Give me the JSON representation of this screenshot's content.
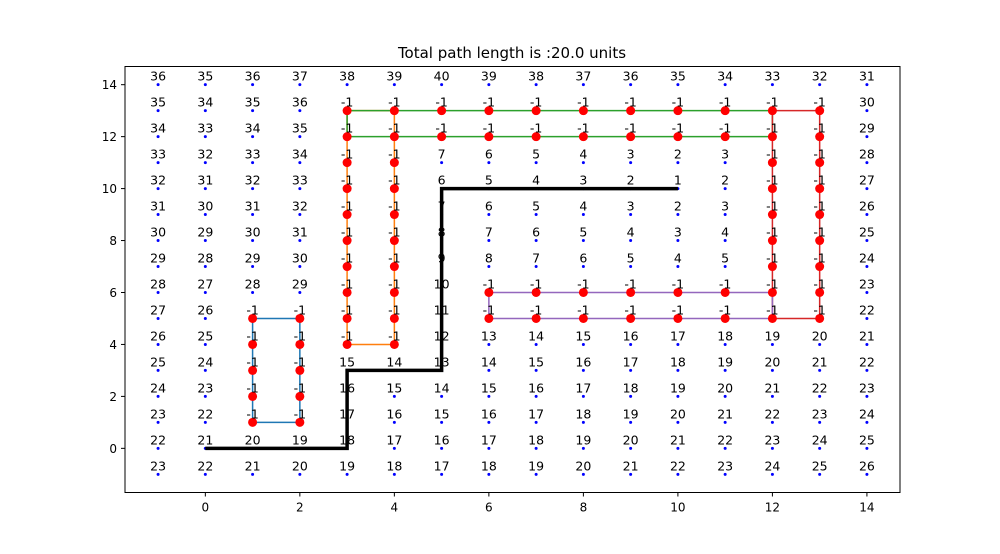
{
  "chart_data": {
    "type": "scatter",
    "title": "Total path length is :20.0 units",
    "xlim": [
      -1.7,
      14.7
    ],
    "ylim": [
      -1.7,
      14.7
    ],
    "x_ticks": [
      0,
      2,
      4,
      6,
      8,
      10,
      12,
      14
    ],
    "y_ticks": [
      0,
      2,
      4,
      6,
      8,
      10,
      12,
      14
    ],
    "x_tick_labels": [
      "0",
      "2",
      "4",
      "6",
      "8",
      "10",
      "12",
      "14"
    ],
    "y_tick_labels": [
      "0",
      "2",
      "4",
      "6",
      "8",
      "10",
      "12",
      "14"
    ],
    "grid": false,
    "grid_points": {
      "x": [
        -1,
        0,
        1,
        2,
        3,
        4,
        5,
        6,
        7,
        8,
        9,
        10,
        11,
        12,
        13,
        14
      ],
      "y": [
        -1,
        0,
        1,
        2,
        3,
        4,
        5,
        6,
        7,
        8,
        9,
        10,
        11,
        12,
        13,
        14
      ],
      "color": "#0000ff"
    },
    "cell_values_top_to_bottom": [
      [
        "36",
        "35",
        "36",
        "37",
        "38",
        "39",
        "40",
        "39",
        "38",
        "37",
        "36",
        "35",
        "34",
        "33",
        "32",
        "31"
      ],
      [
        "35",
        "34",
        "35",
        "36",
        "-1",
        "-1",
        "-1",
        "-1",
        "-1",
        "-1",
        "-1",
        "-1",
        "-1",
        "-1",
        "-1",
        "30"
      ],
      [
        "34",
        "33",
        "34",
        "35",
        "-1",
        "-1",
        "-1",
        "-1",
        "-1",
        "-1",
        "-1",
        "-1",
        "-1",
        "-1",
        "-1",
        "29"
      ],
      [
        "33",
        "32",
        "33",
        "34",
        "-1",
        "-1",
        "7",
        "6",
        "5",
        "4",
        "3",
        "2",
        "3",
        "-1",
        "-1",
        "28"
      ],
      [
        "32",
        "31",
        "32",
        "33",
        "-1",
        "-1",
        "6",
        "5",
        "4",
        "3",
        "2",
        "1",
        "2",
        "-1",
        "-1",
        "27"
      ],
      [
        "31",
        "30",
        "31",
        "32",
        "-1",
        "-1",
        "7",
        "6",
        "5",
        "4",
        "3",
        "2",
        "3",
        "-1",
        "-1",
        "26"
      ],
      [
        "30",
        "29",
        "30",
        "31",
        "-1",
        "-1",
        "8",
        "7",
        "6",
        "5",
        "4",
        "3",
        "4",
        "-1",
        "-1",
        "25"
      ],
      [
        "29",
        "28",
        "29",
        "30",
        "-1",
        "-1",
        "9",
        "8",
        "7",
        "6",
        "5",
        "4",
        "5",
        "-1",
        "-1",
        "24"
      ],
      [
        "28",
        "27",
        "28",
        "29",
        "-1",
        "-1",
        "10",
        "-1",
        "-1",
        "-1",
        "-1",
        "-1",
        "-1",
        "-1",
        "-1",
        "23"
      ],
      [
        "27",
        "26",
        "-1",
        "-1",
        "-1",
        "-1",
        "11",
        "-1",
        "-1",
        "-1",
        "-1",
        "-1",
        "-1",
        "-1",
        "-1",
        "22"
      ],
      [
        "26",
        "25",
        "-1",
        "-1",
        "-1",
        "-1",
        "12",
        "13",
        "14",
        "15",
        "16",
        "17",
        "18",
        "19",
        "20",
        "21"
      ],
      [
        "25",
        "24",
        "-1",
        "-1",
        "15",
        "14",
        "13",
        "14",
        "15",
        "16",
        "17",
        "18",
        "19",
        "20",
        "21",
        "22"
      ],
      [
        "24",
        "23",
        "-1",
        "-1",
        "16",
        "15",
        "14",
        "15",
        "16",
        "17",
        "18",
        "19",
        "20",
        "21",
        "22",
        "23"
      ],
      [
        "23",
        "22",
        "-1",
        "-1",
        "17",
        "16",
        "15",
        "16",
        "17",
        "18",
        "19",
        "20",
        "21",
        "22",
        "23",
        "24"
      ],
      [
        "22",
        "21",
        "20",
        "19",
        "18",
        "17",
        "16",
        "17",
        "18",
        "19",
        "20",
        "21",
        "22",
        "23",
        "24",
        "25"
      ],
      [
        "23",
        "22",
        "21",
        "20",
        "19",
        "18",
        "17",
        "18",
        "19",
        "20",
        "21",
        "22",
        "23",
        "24",
        "25",
        "26"
      ]
    ],
    "obstacles": [
      {
        "color": "#1f77b4",
        "x": [
          1,
          2,
          2,
          1,
          1
        ],
        "y": [
          1,
          1,
          5,
          5,
          1
        ]
      },
      {
        "color": "#ff7f0e",
        "x": [
          3,
          4,
          4,
          3,
          3
        ],
        "y": [
          4,
          4,
          13,
          13,
          4
        ]
      },
      {
        "color": "#2ca02c",
        "x": [
          3,
          12,
          12,
          3,
          3
        ],
        "y": [
          12,
          12,
          13,
          13,
          12
        ]
      },
      {
        "color": "#d62728",
        "x": [
          12,
          13,
          13,
          12,
          12
        ],
        "y": [
          5,
          5,
          13,
          13,
          5
        ]
      },
      {
        "color": "#9467bd",
        "x": [
          6,
          12,
          12,
          6,
          6
        ],
        "y": [
          5,
          5,
          6,
          6,
          5
        ]
      }
    ],
    "obstacle_marker_color": "#ff0000",
    "path": {
      "color": "#000000",
      "x": [
        0,
        3,
        3,
        5,
        5,
        10
      ],
      "y": [
        0,
        0,
        3,
        3,
        10,
        10
      ]
    }
  }
}
